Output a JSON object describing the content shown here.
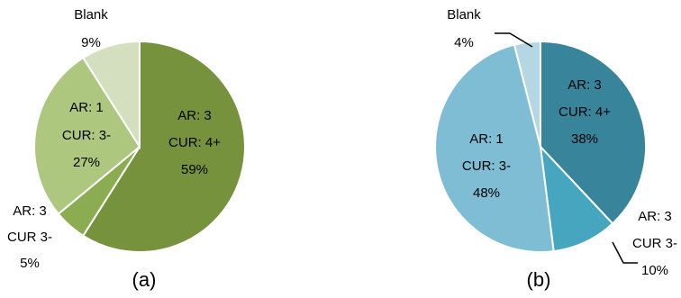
{
  "chart_data": [
    {
      "type": "pie",
      "caption": "(a)",
      "start_angle_deg": 0,
      "direction": "clockwise",
      "slices": [
        {
          "lines": [
            "AR: 3",
            "CUR: 4+"
          ],
          "value": 59,
          "value_label": "59%",
          "color": "#76923c"
        },
        {
          "lines": [
            "AR: 3",
            "CUR 3-"
          ],
          "value": 5,
          "value_label": "5%",
          "color": "#8cac52"
        },
        {
          "lines": [
            "AR: 1",
            "CUR: 3-"
          ],
          "value": 27,
          "value_label": "27%",
          "color": "#adc77f"
        },
        {
          "lines": [
            "Blank"
          ],
          "value": 9,
          "value_label": "9%",
          "color": "#d3dfbe"
        }
      ]
    },
    {
      "type": "pie",
      "caption": "(b)",
      "start_angle_deg": 0,
      "direction": "clockwise",
      "slices": [
        {
          "lines": [
            "AR: 3",
            "CUR: 4+"
          ],
          "value": 38,
          "value_label": "38%",
          "color": "#38849b"
        },
        {
          "lines": [
            "AR: 3",
            "CUR 3-"
          ],
          "value": 10,
          "value_label": "10%",
          "color": "#47a6bf"
        },
        {
          "lines": [
            "AR: 1",
            "CUR: 3-"
          ],
          "value": 48,
          "value_label": "48%",
          "color": "#7ebdd3"
        },
        {
          "lines": [
            "Blank"
          ],
          "value": 4,
          "value_label": "4%",
          "color": "#b4d7e3"
        }
      ]
    }
  ]
}
